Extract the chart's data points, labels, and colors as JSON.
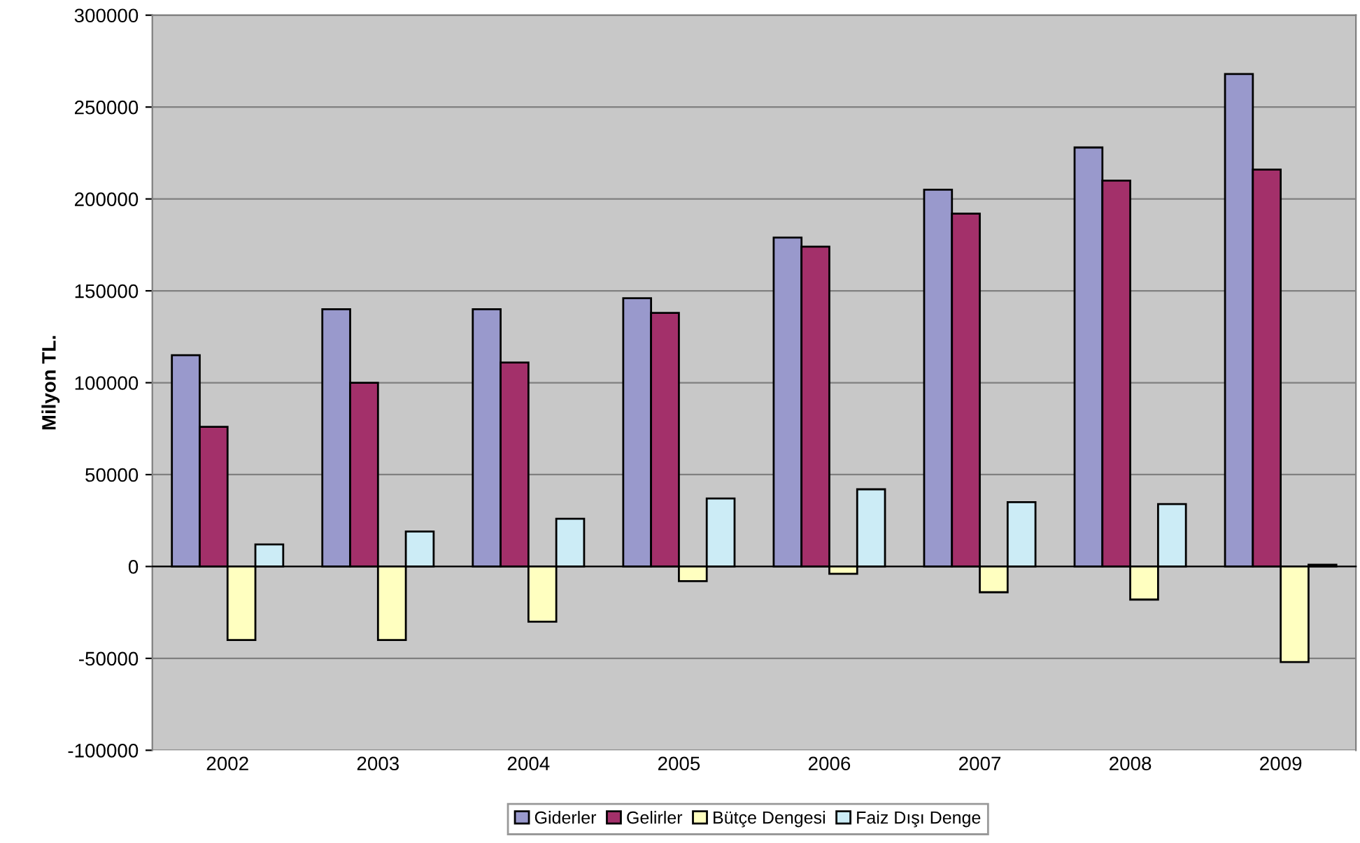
{
  "chart_data": {
    "type": "bar",
    "ylabel": "Milyon TL.",
    "categories": [
      "2002",
      "2003",
      "2004",
      "2005",
      "2006",
      "2007",
      "2008",
      "2009"
    ],
    "series": [
      {
        "name": "Giderler",
        "color": "#9999cc",
        "values": [
          115000,
          140000,
          140000,
          146000,
          179000,
          205000,
          228000,
          268000
        ]
      },
      {
        "name": "Gelirler",
        "color": "#a3306a",
        "values": [
          76000,
          100000,
          111000,
          138000,
          174000,
          192000,
          210000,
          216000
        ]
      },
      {
        "name": "Bütçe Dengesi",
        "color": "#ffffc0",
        "values": [
          -40000,
          -40000,
          -30000,
          -8000,
          -4000,
          -14000,
          -18000,
          -52000
        ]
      },
      {
        "name": "Faiz Dışı Denge",
        "color": "#ccecf6",
        "values": [
          12000,
          19000,
          26000,
          37000,
          42000,
          35000,
          34000,
          1000
        ]
      }
    ],
    "ylim": [
      -100000,
      300000
    ],
    "yticks": [
      -100000,
      -50000,
      0,
      50000,
      100000,
      150000,
      200000,
      250000,
      300000
    ],
    "grid": "y",
    "legend": "bottom"
  }
}
